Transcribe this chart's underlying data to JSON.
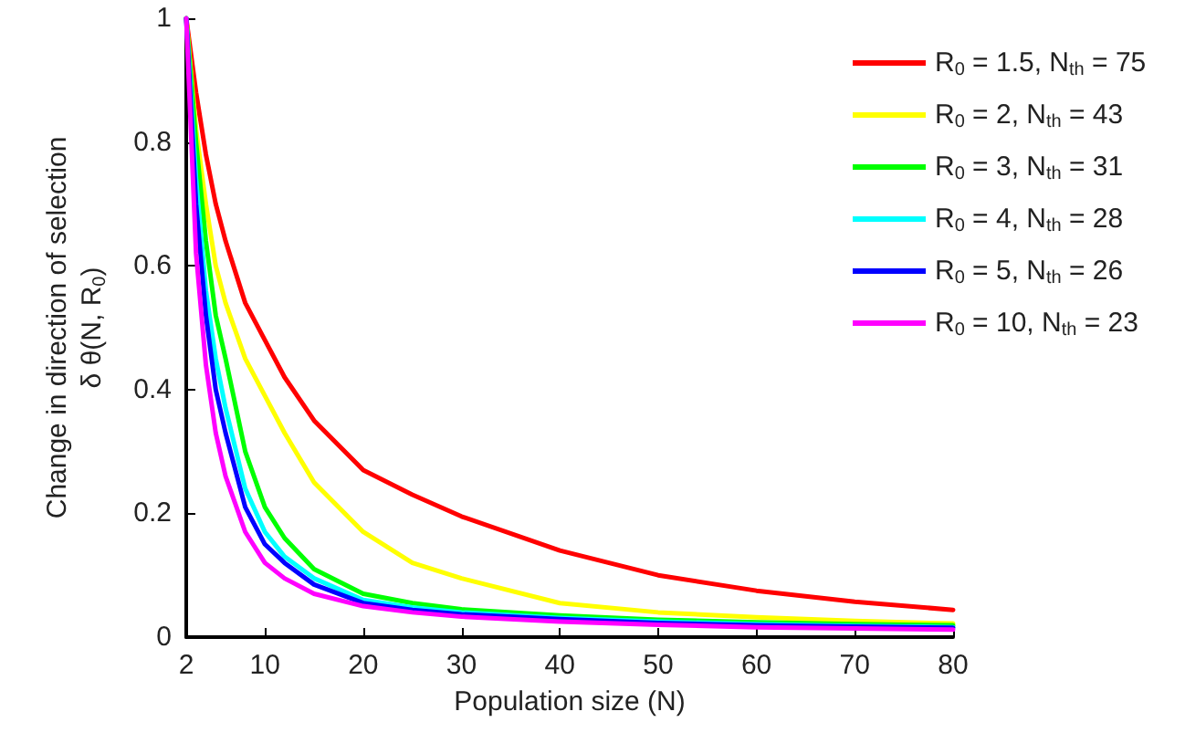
{
  "chart_data": {
    "type": "line",
    "xlabel": "Population size (N)",
    "ylabel": "Change in direction of selection\nδ θ(N, R$_{0}$)",
    "x": [
      2,
      3,
      4,
      5,
      6,
      8,
      10,
      12,
      15,
      20,
      25,
      30,
      40,
      50,
      60,
      70,
      80
    ],
    "xlim": [
      2,
      80
    ],
    "xticks": [
      2,
      10,
      20,
      30,
      40,
      50,
      60,
      70,
      80
    ],
    "ylim": [
      0,
      1
    ],
    "yticks": [
      0,
      0.2,
      0.4,
      0.6,
      0.8,
      1
    ],
    "grid": false,
    "legend": "top right",
    "marker": "none",
    "line_style": "solid",
    "series": [
      {
        "name": "R$_{0}$ = 1.5, N$_{th}$ = 75",
        "color": "#ff0000",
        "values": [
          1,
          0.88,
          0.78,
          0.7,
          0.64,
          0.54,
          0.48,
          0.42,
          0.35,
          0.27,
          0.23,
          0.195,
          0.14,
          0.1,
          0.075,
          0.057,
          0.044
        ]
      },
      {
        "name": "R$_{0}$ = 2, N$_{th}$ = 43",
        "color": "#ffff00",
        "values": [
          1,
          0.82,
          0.7,
          0.6,
          0.54,
          0.45,
          0.39,
          0.33,
          0.25,
          0.17,
          0.12,
          0.095,
          0.055,
          0.04,
          0.032,
          0.026,
          0.022
        ]
      },
      {
        "name": "R$_{0}$ = 3, N$_{th}$ = 31",
        "color": "#00ff00",
        "values": [
          1,
          0.8,
          0.64,
          0.52,
          0.45,
          0.3,
          0.21,
          0.16,
          0.11,
          0.07,
          0.055,
          0.045,
          0.035,
          0.028,
          0.024,
          0.021,
          0.019
        ]
      },
      {
        "name": "R$_{0}$ = 4, N$_{th}$ = 28",
        "color": "#00ffff",
        "values": [
          1,
          0.74,
          0.56,
          0.45,
          0.37,
          0.24,
          0.17,
          0.13,
          0.095,
          0.06,
          0.048,
          0.04,
          0.031,
          0.025,
          0.021,
          0.018,
          0.016
        ]
      },
      {
        "name": "R$_{0}$ = 5, N$_{th}$ = 26",
        "color": "#0000ff",
        "values": [
          1,
          0.7,
          0.52,
          0.4,
          0.33,
          0.21,
          0.15,
          0.12,
          0.085,
          0.055,
          0.044,
          0.037,
          0.029,
          0.023,
          0.019,
          0.017,
          0.015
        ]
      },
      {
        "name": "R$_{0}$ = 10, N$_{th}$ = 23",
        "color": "#ff00ff",
        "values": [
          1,
          0.62,
          0.44,
          0.33,
          0.26,
          0.17,
          0.12,
          0.095,
          0.07,
          0.05,
          0.04,
          0.033,
          0.025,
          0.02,
          0.016,
          0.014,
          0.012
        ]
      }
    ]
  }
}
